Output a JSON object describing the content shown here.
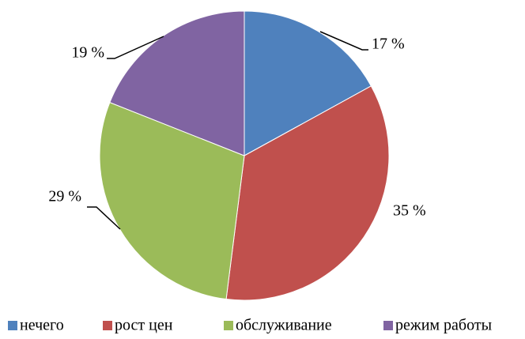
{
  "chart_data": {
    "type": "pie",
    "categories": [
      "нечего",
      "рост цен",
      "обслуживание",
      "режим работы"
    ],
    "values": [
      17,
      35,
      29,
      19
    ],
    "value_labels": [
      "17 %",
      "35 %",
      "29 %",
      "19 %"
    ],
    "colors": [
      "#4f81bd",
      "#c0504d",
      "#9bbb59",
      "#8064a2"
    ],
    "legend": "bottom"
  }
}
